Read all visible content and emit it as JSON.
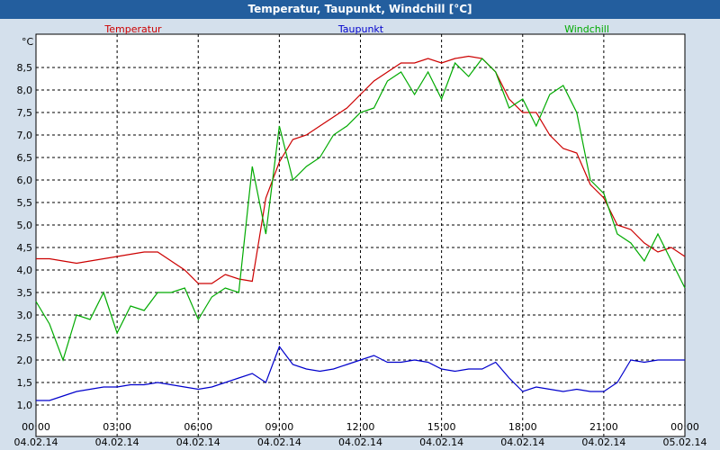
{
  "window": {
    "title": "Temperatur, Taupunkt, Windchill [°C]"
  },
  "chart_data": {
    "type": "line",
    "title": "Temperatur, Taupunkt, Windchill [°C]",
    "ylabel": "°C",
    "xlabel": "",
    "ylim": [
      0.8,
      9.0
    ],
    "xlim": [
      0,
      24
    ],
    "grid": true,
    "legend_placement": "top",
    "y_ticks": [
      "1,0",
      "1,5",
      "2,0",
      "2,5",
      "3,0",
      "3,5",
      "4,0",
      "4,5",
      "5,0",
      "5,5",
      "6,0",
      "6,5",
      "7,0",
      "7,5",
      "8,0",
      "8,5"
    ],
    "y_tick_values": [
      1.0,
      1.5,
      2.0,
      2.5,
      3.0,
      3.5,
      4.0,
      4.5,
      5.0,
      5.5,
      6.0,
      6.5,
      7.0,
      7.5,
      8.0,
      8.5
    ],
    "x_ticks": [
      {
        "time": "00:00",
        "date": "04.02.14",
        "value": 0
      },
      {
        "time": "03:00",
        "date": "04.02.14",
        "value": 3
      },
      {
        "time": "06:00",
        "date": "04.02.14",
        "value": 6
      },
      {
        "time": "09:00",
        "date": "04.02.14",
        "value": 9
      },
      {
        "time": "12:00",
        "date": "04.02.14",
        "value": 12
      },
      {
        "time": "15:00",
        "date": "04.02.14",
        "value": 15
      },
      {
        "time": "18:00",
        "date": "04.02.14",
        "value": 18
      },
      {
        "time": "21:00",
        "date": "04.02.14",
        "value": 21
      },
      {
        "time": "00:00",
        "date": "05.02.14",
        "value": 24
      }
    ],
    "series": [
      {
        "name": "Temperatur",
        "color": "#cc0000",
        "legend_position": "left",
        "x": [
          0,
          0.5,
          1,
          1.5,
          2,
          2.5,
          3,
          3.5,
          4,
          4.5,
          5,
          5.5,
          6,
          6.5,
          7,
          7.5,
          8,
          8.5,
          9,
          9.5,
          10,
          10.5,
          11,
          11.5,
          12,
          12.5,
          13,
          13.5,
          14,
          14.5,
          15,
          15.5,
          16,
          16.5,
          17,
          17.5,
          18,
          18.5,
          19,
          19.5,
          20,
          20.5,
          21,
          21.5,
          22,
          22.5,
          23,
          23.5,
          24
        ],
        "values": [
          4.25,
          4.25,
          4.2,
          4.15,
          4.2,
          4.25,
          4.3,
          4.35,
          4.4,
          4.4,
          4.2,
          4.0,
          3.7,
          3.7,
          3.9,
          3.8,
          3.75,
          5.6,
          6.4,
          6.9,
          7.0,
          7.2,
          7.4,
          7.6,
          7.9,
          8.2,
          8.4,
          8.6,
          8.6,
          8.7,
          8.6,
          8.7,
          8.75,
          8.7,
          8.4,
          7.8,
          7.5,
          7.5,
          7.0,
          6.7,
          6.6,
          5.9,
          5.6,
          5.0,
          4.9,
          4.6,
          4.4,
          4.5,
          4.3
        ]
      },
      {
        "name": "Taupunkt",
        "color": "#0000cc",
        "legend_position": "center",
        "x": [
          0,
          0.5,
          1,
          1.5,
          2,
          2.5,
          3,
          3.5,
          4,
          4.5,
          5,
          5.5,
          6,
          6.5,
          7,
          7.5,
          8,
          8.5,
          9,
          9.5,
          10,
          10.5,
          11,
          11.5,
          12,
          12.5,
          13,
          13.5,
          14,
          14.5,
          15,
          15.5,
          16,
          16.5,
          17,
          17.5,
          18,
          18.5,
          19,
          19.5,
          20,
          20.5,
          21,
          21.5,
          22,
          22.5,
          23,
          23.5,
          24
        ],
        "values": [
          1.1,
          1.1,
          1.2,
          1.3,
          1.35,
          1.4,
          1.4,
          1.45,
          1.45,
          1.5,
          1.45,
          1.4,
          1.35,
          1.4,
          1.5,
          1.6,
          1.7,
          1.5,
          2.3,
          1.9,
          1.8,
          1.75,
          1.8,
          1.9,
          2.0,
          2.1,
          1.95,
          1.95,
          2.0,
          1.95,
          1.8,
          1.75,
          1.8,
          1.8,
          1.95,
          1.6,
          1.3,
          1.4,
          1.35,
          1.3,
          1.35,
          1.3,
          1.3,
          1.5,
          2.0,
          1.95,
          2.0,
          2.0,
          2.0
        ]
      },
      {
        "name": "Windchill",
        "color": "#00aa00",
        "legend_position": "right",
        "x": [
          0,
          0.5,
          1,
          1.5,
          2,
          2.5,
          3,
          3.5,
          4,
          4.5,
          5,
          5.5,
          6,
          6.5,
          7,
          7.5,
          8,
          8.5,
          9,
          9.5,
          10,
          10.5,
          11,
          11.5,
          12,
          12.5,
          13,
          13.5,
          14,
          14.5,
          15,
          15.5,
          16,
          16.5,
          17,
          17.5,
          18,
          18.5,
          19,
          19.5,
          20,
          20.5,
          21,
          21.5,
          22,
          22.5,
          23,
          23.5,
          24
        ],
        "values": [
          3.3,
          2.8,
          2.0,
          3.0,
          2.9,
          3.5,
          2.6,
          3.2,
          3.1,
          3.5,
          3.5,
          3.6,
          2.9,
          3.4,
          3.6,
          3.5,
          6.3,
          4.8,
          7.2,
          6.0,
          6.3,
          6.5,
          7.0,
          7.2,
          7.5,
          7.6,
          8.2,
          8.4,
          7.9,
          8.4,
          7.8,
          8.6,
          8.3,
          8.7,
          8.4,
          7.6,
          7.8,
          7.2,
          7.9,
          8.1,
          7.5,
          6.0,
          5.7,
          4.8,
          4.6,
          4.2,
          4.8,
          4.2,
          3.6
        ]
      }
    ]
  }
}
